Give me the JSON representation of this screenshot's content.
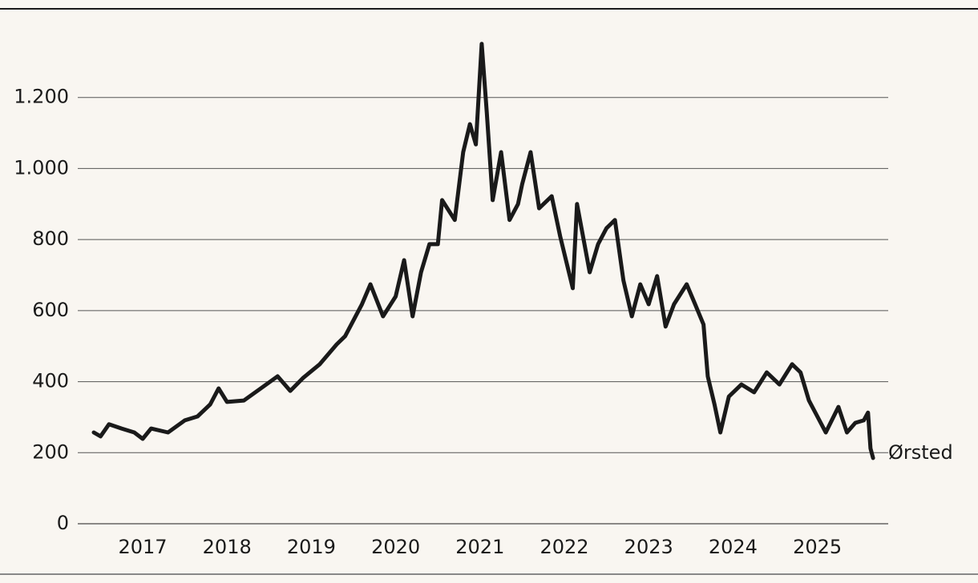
{
  "chart_data": {
    "type": "line",
    "series": [
      {
        "name": "Ørsted",
        "color": "#1a1a1a",
        "x": [
          2016.42,
          2016.5,
          2016.6,
          2016.75,
          2016.9,
          2017.0,
          2017.1,
          2017.3,
          2017.5,
          2017.65,
          2017.8,
          2017.9,
          2018.0,
          2018.2,
          2018.4,
          2018.6,
          2018.75,
          2018.9,
          2019.1,
          2019.3,
          2019.4,
          2019.6,
          2019.7,
          2019.85,
          2020.0,
          2020.1,
          2020.2,
          2020.3,
          2020.4,
          2020.5,
          2020.55,
          2020.7,
          2020.8,
          2020.88,
          2020.95,
          2021.02,
          2021.08,
          2021.15,
          2021.25,
          2021.35,
          2021.45,
          2021.5,
          2021.6,
          2021.7,
          2021.85,
          2021.95,
          2022.1,
          2022.15,
          2022.3,
          2022.4,
          2022.5,
          2022.6,
          2022.7,
          2022.8,
          2022.9,
          2023.0,
          2023.1,
          2023.2,
          2023.3,
          2023.45,
          2023.55,
          2023.65,
          2023.7,
          2023.78,
          2023.85,
          2023.95,
          2024.1,
          2024.25,
          2024.4,
          2024.55,
          2024.7,
          2024.8,
          2024.9,
          2025.0,
          2025.1,
          2025.25,
          2025.35,
          2025.45,
          2025.55,
          2025.6,
          2025.63,
          2025.66
        ],
        "values": [
          257,
          246,
          280,
          268,
          257,
          239,
          268,
          257,
          291,
          302,
          336,
          381,
          343,
          347,
          381,
          415,
          374,
          410,
          449,
          505,
          528,
          618,
          674,
          584,
          640,
          742,
          584,
          708,
          787,
          787,
          911,
          855,
          1046,
          1125,
          1068,
          1351,
          1159,
          911,
          1046,
          855,
          900,
          956,
          1046,
          888,
          922,
          809,
          663,
          900,
          708,
          787,
          832,
          855,
          685,
          584,
          674,
          618,
          697,
          555,
          618,
          674,
          618,
          561,
          415,
          336,
          257,
          358,
          392,
          370,
          426,
          392,
          449,
          426,
          347,
          302,
          257,
          329,
          257,
          284,
          291,
          313,
          212,
          185
        ]
      }
    ],
    "xlim": [
      2016.23,
      2025.84
    ],
    "xticks": [
      2017,
      2018,
      2019,
      2020,
      2021,
      2022,
      2023,
      2024,
      2025
    ],
    "ylim": [
      0,
      1400
    ],
    "yticks": [
      0,
      200,
      400,
      600,
      800,
      {
        "value": 1000,
        "label": "1.000"
      },
      {
        "value": 1200,
        "label": "1.200"
      }
    ],
    "grid": true
  }
}
